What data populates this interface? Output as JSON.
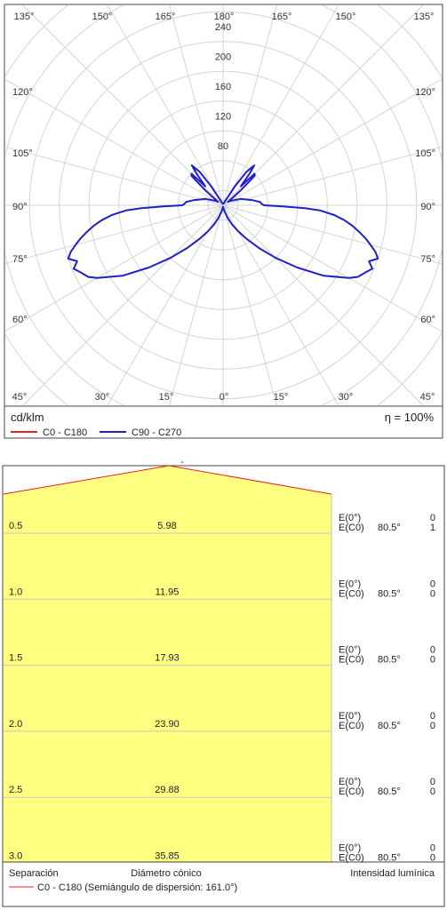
{
  "chart_data": [
    {
      "type": "polar",
      "unit_label": "cd/klm",
      "efficiency": "η = 100%",
      "radial_ticks": [
        "80",
        "120",
        "160",
        "200",
        "240"
      ],
      "radial_values": [
        80,
        120,
        160,
        200,
        240
      ],
      "rmax": 265,
      "angle_labels_top": [
        "135°",
        "150°",
        "165°",
        "180°",
        "165°",
        "150°",
        "135°"
      ],
      "angle_labels_bottom": [
        "45°",
        "30°",
        "15°",
        "0°",
        "15°",
        "30°",
        "45°"
      ],
      "angle_labels_left": [
        "120°",
        "105°",
        "90°",
        "75°",
        "60°"
      ],
      "angle_labels_right": [
        "120°",
        "105°",
        "90°",
        "75°",
        "60°"
      ],
      "legend": [
        {
          "name": "C0 - C180",
          "color": "#e8201c"
        },
        {
          "name": "C90 - C270",
          "color": "#1f20c8"
        }
      ],
      "series": [
        {
          "name": "C90 - C270",
          "color": "#1f20c8",
          "gamma_deg": [
            0,
            5,
            10,
            15,
            20,
            25,
            30,
            35,
            40,
            45,
            50,
            55,
            60,
            62,
            65,
            67,
            69,
            71,
            73,
            75,
            77,
            79,
            81,
            83,
            85,
            87,
            88,
            89,
            90,
            92,
            95,
            100,
            110,
            120,
            125,
            130,
            133,
            135,
            137,
            140,
            142,
            145,
            148,
            150,
            155,
            160,
            170,
            180
          ],
          "intensity": [
            2,
            3,
            5,
            10,
            18,
            28,
            40,
            55,
            75,
            100,
            130,
            165,
            195,
            205,
            212,
            218,
            210,
            220,
            214,
            205,
            196,
            186,
            176,
            164,
            150,
            130,
            110,
            80,
            55,
            52,
            50,
            40,
            25,
            12,
            8,
            30,
            58,
            60,
            35,
            55,
            68,
            55,
            30,
            12,
            5,
            3,
            2,
            2
          ]
        }
      ]
    },
    {
      "type": "table",
      "headers": [
        "Separación",
        "Diámetro cónico",
        "Intensidad lumínica"
      ],
      "legend": "C0 - C180 (Semiángulo de dispersión: 161.0°)",
      "legend_color": "#e8201c",
      "top_label": "-",
      "rows": [
        {
          "sep": "0.5",
          "diam": "5.98",
          "e0": "E(0°)",
          "ec0": "E(C0)",
          "angle": "80.5°",
          "v1": "0",
          "v2": "1"
        },
        {
          "sep": "1.0",
          "diam": "11.95",
          "e0": "E(0°)",
          "ec0": "E(C0)",
          "angle": "80.5°",
          "v1": "0",
          "v2": "0"
        },
        {
          "sep": "1.5",
          "diam": "17.93",
          "e0": "E(0°)",
          "ec0": "E(C0)",
          "angle": "80.5°",
          "v1": "0",
          "v2": "0"
        },
        {
          "sep": "2.0",
          "diam": "23.90",
          "e0": "E(0°)",
          "ec0": "E(C0)",
          "angle": "80.5°",
          "v1": "0",
          "v2": "0"
        },
        {
          "sep": "2.5",
          "diam": "29.88",
          "e0": "E(0°)",
          "ec0": "E(C0)",
          "angle": "80.5°",
          "v1": "0",
          "v2": "0"
        },
        {
          "sep": "3.0",
          "diam": "35.85",
          "e0": "E(0°)",
          "ec0": "E(C0)",
          "angle": "80.5°",
          "v1": "0",
          "v2": "0"
        }
      ]
    }
  ]
}
